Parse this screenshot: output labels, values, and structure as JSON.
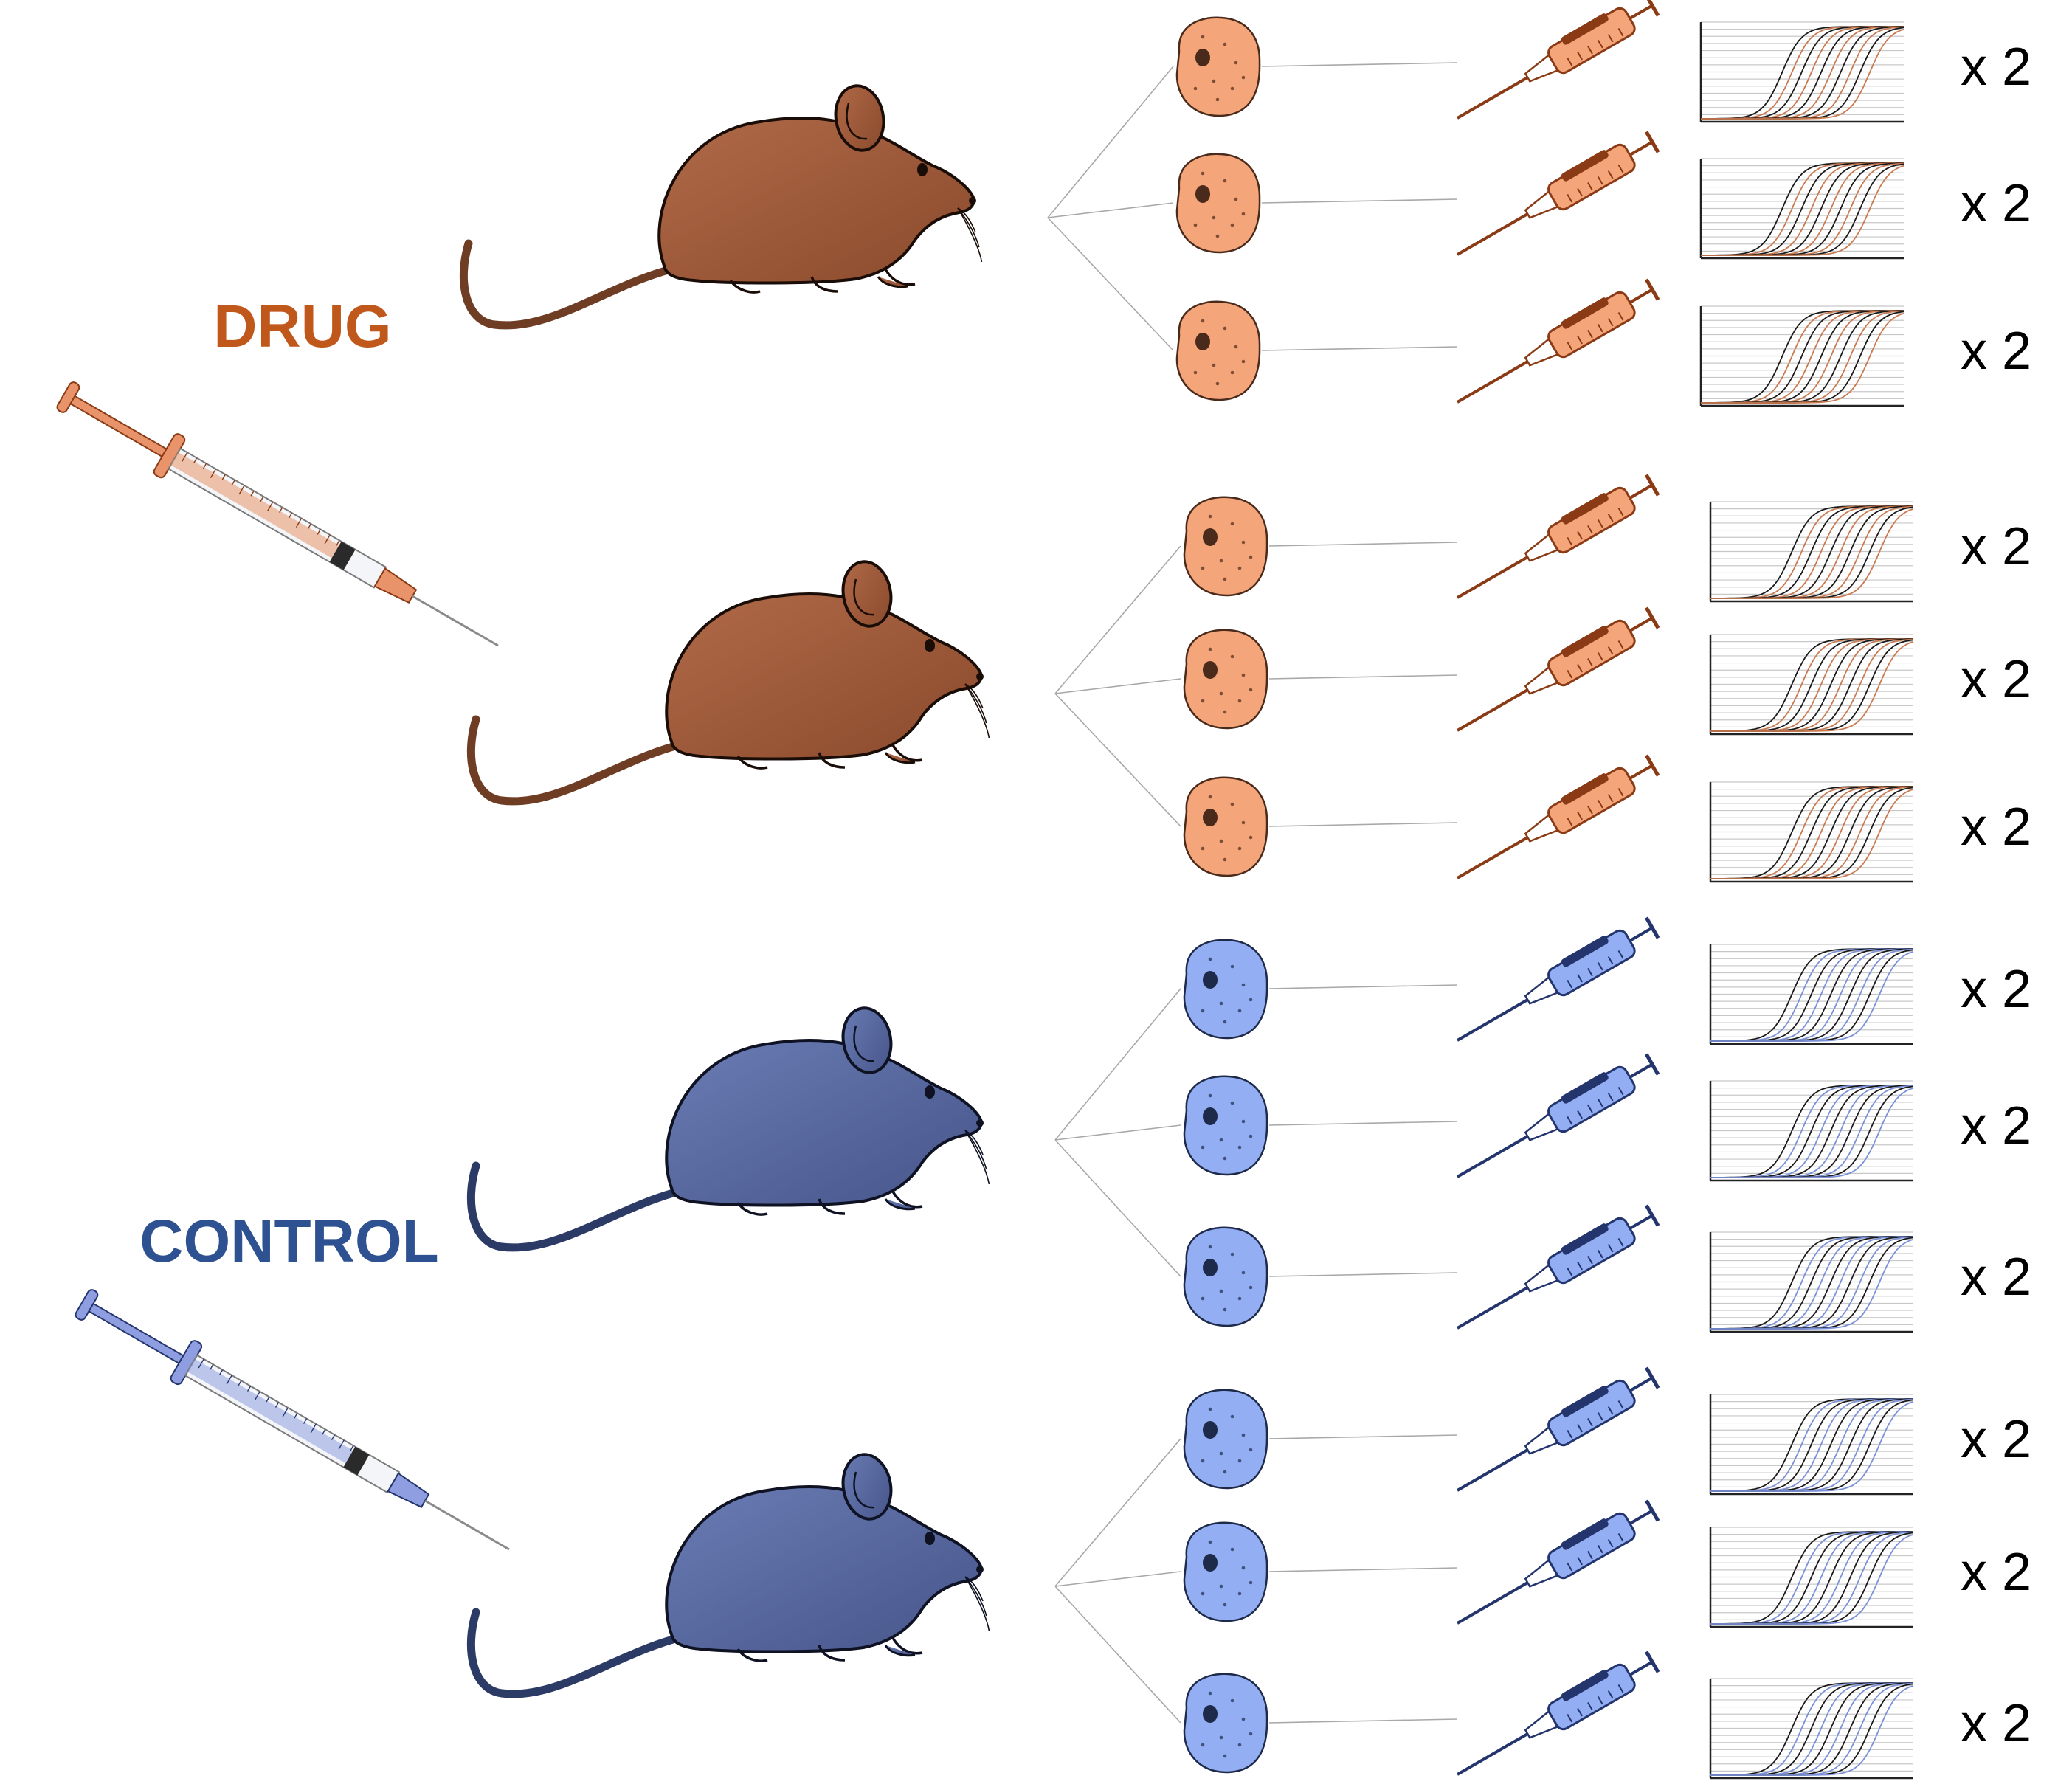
{
  "groups": [
    {
      "label": "DRUG",
      "color": "#c0581c",
      "syringe_color": "#e8936a",
      "mouse_color": "#a5603e",
      "mouse_outline": "#1a0d08",
      "tail_color": "#6e3d24",
      "cell_color": "#f4a57a",
      "cell_outline": "#4a2a1a",
      "pipette_color": "#f4a57a",
      "pipette_dark": "#8a3a14",
      "curve_color": "#c97a50",
      "mice": [
        {
          "samples": [
            {
              "multiplier": "x 2"
            },
            {
              "multiplier": "x 2"
            },
            {
              "multiplier": "x 2"
            }
          ]
        },
        {
          "samples": [
            {
              "multiplier": "x 2"
            },
            {
              "multiplier": "x 2"
            },
            {
              "multiplier": "x 2"
            }
          ]
        }
      ]
    },
    {
      "label": "CONTROL",
      "color": "#2e5291",
      "syringe_color": "#8e9ee0",
      "mouse_color": "#5d6fa6",
      "mouse_outline": "#0e1222",
      "tail_color": "#2c3a66",
      "cell_color": "#93aef2",
      "cell_outline": "#1e2a4a",
      "pipette_color": "#93aef2",
      "pipette_dark": "#24356e",
      "curve_color": "#7a90d8",
      "mice": [
        {
          "samples": [
            {
              "multiplier": "x 2"
            },
            {
              "multiplier": "x 2"
            },
            {
              "multiplier": "x 2"
            }
          ]
        },
        {
          "samples": [
            {
              "multiplier": "x 2"
            },
            {
              "multiplier": "x 2"
            },
            {
              "multiplier": "x 2"
            }
          ]
        }
      ]
    }
  ],
  "icons": {
    "syringe": "syringe-icon",
    "mouse": "mouse-icon",
    "cell": "cell-icon",
    "pipette": "pipette-icon",
    "amplification_plot": "amplification-plot-icon"
  }
}
